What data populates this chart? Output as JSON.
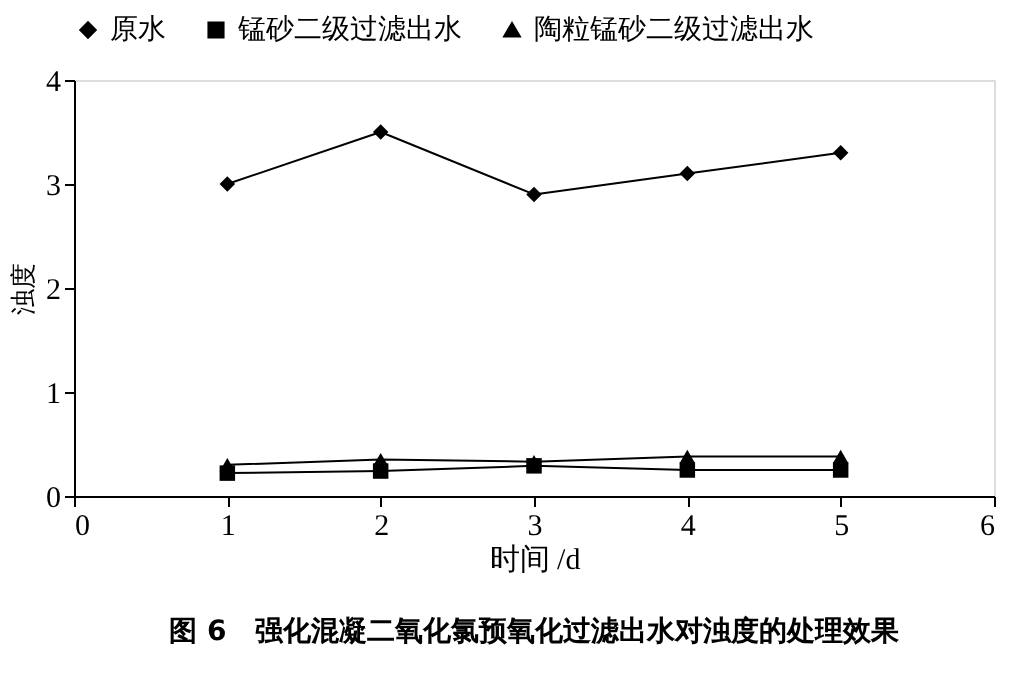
{
  "chart_data": {
    "type": "line",
    "title": "图 6　强化混凝二氧化氯预氧化过滤出水对浊度的处理效果",
    "xlabel": "时间 /d",
    "ylabel": "浊度",
    "x": [
      1,
      2,
      3,
      4,
      5
    ],
    "xlim": [
      0,
      6
    ],
    "xticks": [
      0,
      1,
      2,
      3,
      4,
      5,
      6
    ],
    "ylim": [
      0,
      4
    ],
    "yticks": [
      0,
      1,
      2,
      3,
      4
    ],
    "grid": false,
    "legend": "top",
    "line_style": "solid",
    "series": [
      {
        "name": "原水",
        "color": "#000000",
        "marker": "diamond",
        "values": [
          3.0,
          3.5,
          2.9,
          3.1,
          3.3
        ]
      },
      {
        "name": "锰砂二级过滤出水",
        "color": "#000000",
        "marker": "square",
        "values": [
          0.22,
          0.24,
          0.29,
          0.25,
          0.25
        ]
      },
      {
        "name": "陶粒锰砂二级过滤出水",
        "color": "#000000",
        "marker": "triangle",
        "values": [
          0.3,
          0.35,
          0.33,
          0.38,
          0.38
        ]
      }
    ]
  }
}
